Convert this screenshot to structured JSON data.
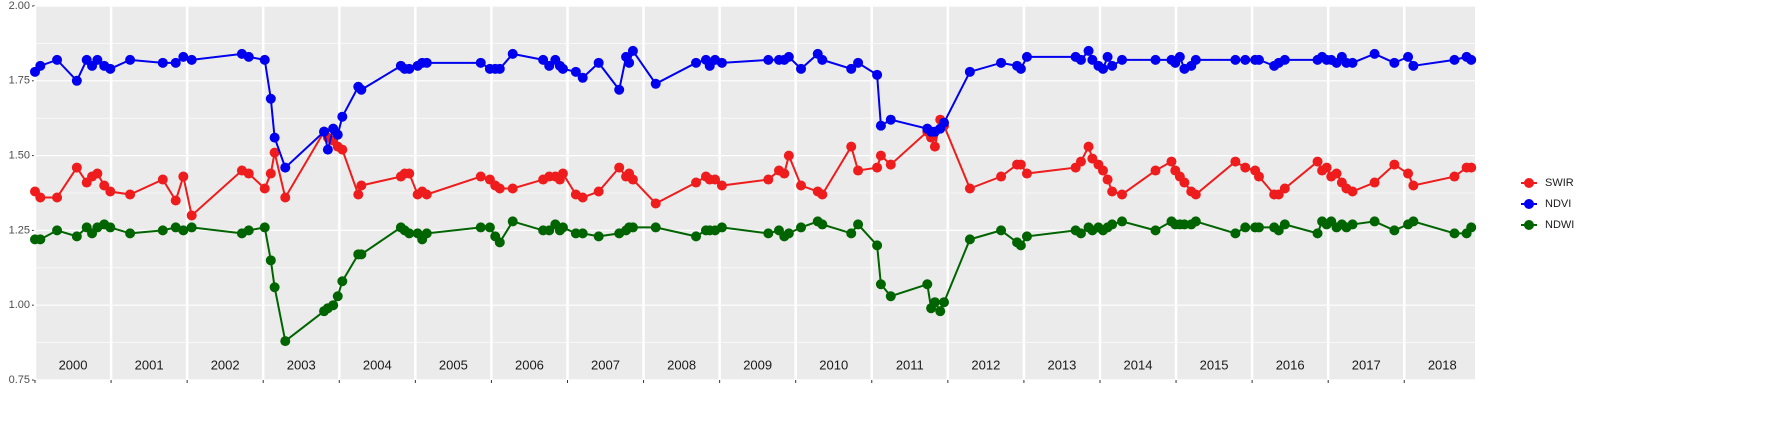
{
  "chart_data": {
    "type": "line",
    "legend": "right",
    "grid": true,
    "xlim": [
      2000,
      2018.93
    ],
    "xticks": [
      2000,
      2001,
      2002,
      2003,
      2004,
      2005,
      2006,
      2007,
      2008,
      2009,
      2010,
      2011,
      2012,
      2013,
      2014,
      2015,
      2016,
      2017,
      2018
    ],
    "ylim": [
      0.75,
      2
    ],
    "yticks": [
      0.75,
      {
        "value": 1,
        "label": "1.00"
      },
      1.25,
      {
        "value": 1.5,
        "label": "1.50"
      },
      1.75,
      {
        "value": 2,
        "label": "2.00"
      }
    ],
    "x": [
      2000,
      2000.07,
      2000.29,
      2000.55,
      2000.68,
      2000.75,
      2000.82,
      2000.91,
      2000.99,
      2001.25,
      2001.68,
      2001.85,
      2001.95,
      2002.06,
      2002.72,
      2002.81,
      2003.02,
      2003.1,
      2003.15,
      2003.29,
      2003.8,
      2003.85,
      2003.92,
      2003.98,
      2004.04,
      2004.25,
      2004.29,
      2004.81,
      2004.86,
      2004.92,
      2005.03,
      2005.09,
      2005.15,
      2005.86,
      2005.98,
      2006.05,
      2006.11,
      2006.28,
      2006.68,
      2006.76,
      2006.84,
      2006.9,
      2006.94,
      2007.11,
      2007.2,
      2007.41,
      2007.68,
      2007.77,
      2007.81,
      2007.86,
      2008.16,
      2008.69,
      2008.82,
      2008.87,
      2008.94,
      2009.03,
      2009.64,
      2009.78,
      2009.85,
      2009.91,
      2010.07,
      2010.29,
      2010.35,
      2010.73,
      2010.82,
      2011.07,
      2011.12,
      2011.25,
      2011.73,
      2011.78,
      2011.83,
      2011.9,
      2011.95,
      2012.29,
      2012.7,
      2012.91,
      2012.96,
      2013.04,
      2013.68,
      2013.75,
      2013.85,
      2013.9,
      2013.98,
      2014.04,
      2014.1,
      2014.16,
      2014.29,
      2014.73,
      2014.94,
      2014.99,
      2015.05,
      2015.11,
      2015.2,
      2015.26,
      2015.78,
      2015.91,
      2016.04,
      2016.09,
      2016.29,
      2016.35,
      2016.43,
      2016.86,
      2016.92,
      2016.98,
      2017.04,
      2017.11,
      2017.18,
      2017.24,
      2017.32,
      2017.61,
      2017.87,
      2018.05,
      2018.12,
      2018.66,
      2018.82,
      2018.88
    ],
    "series": [
      {
        "name": "SWIR",
        "color": "#ee1c1c",
        "values": [
          1.38,
          1.36,
          1.36,
          1.46,
          1.41,
          1.43,
          1.44,
          1.4,
          1.38,
          1.37,
          1.42,
          1.35,
          1.43,
          1.3,
          1.45,
          1.44,
          1.39,
          1.44,
          1.51,
          1.36,
          1.58,
          1.56,
          1.55,
          1.53,
          1.52,
          1.37,
          1.4,
          1.43,
          1.44,
          1.44,
          1.37,
          1.38,
          1.37,
          1.43,
          1.42,
          1.4,
          1.39,
          1.39,
          1.42,
          1.43,
          1.43,
          1.42,
          1.44,
          1.37,
          1.36,
          1.38,
          1.46,
          1.43,
          1.44,
          1.42,
          1.34,
          1.41,
          1.43,
          1.42,
          1.42,
          1.4,
          1.42,
          1.45,
          1.44,
          1.5,
          1.4,
          1.38,
          1.37,
          1.53,
          1.45,
          1.46,
          1.5,
          1.47,
          1.58,
          1.56,
          1.53,
          1.62,
          1.6,
          1.39,
          1.43,
          1.47,
          1.47,
          1.44,
          1.46,
          1.48,
          1.53,
          1.49,
          1.47,
          1.45,
          1.42,
          1.38,
          1.37,
          1.45,
          1.48,
          1.45,
          1.43,
          1.41,
          1.38,
          1.37,
          1.48,
          1.46,
          1.45,
          1.43,
          1.37,
          1.37,
          1.39,
          1.48,
          1.45,
          1.46,
          1.43,
          1.44,
          1.41,
          1.39,
          1.38,
          1.41,
          1.47,
          1.44,
          1.4,
          1.43,
          1.46,
          1.46
        ]
      },
      {
        "name": "NDVI",
        "color": "#0000ee",
        "values": [
          1.78,
          1.8,
          1.82,
          1.75,
          1.82,
          1.8,
          1.82,
          1.8,
          1.79,
          1.82,
          1.81,
          1.81,
          1.83,
          1.82,
          1.84,
          1.83,
          1.82,
          1.69,
          1.56,
          1.46,
          1.58,
          1.52,
          1.59,
          1.57,
          1.63,
          1.73,
          1.72,
          1.8,
          1.79,
          1.79,
          1.8,
          1.81,
          1.81,
          1.81,
          1.79,
          1.79,
          1.79,
          1.84,
          1.82,
          1.8,
          1.82,
          1.8,
          1.79,
          1.78,
          1.76,
          1.81,
          1.72,
          1.83,
          1.81,
          1.85,
          1.74,
          1.81,
          1.82,
          1.8,
          1.82,
          1.81,
          1.82,
          1.82,
          1.82,
          1.83,
          1.79,
          1.84,
          1.82,
          1.79,
          1.81,
          1.77,
          1.6,
          1.62,
          1.59,
          1.58,
          1.58,
          1.59,
          1.61,
          1.78,
          1.81,
          1.8,
          1.79,
          1.83,
          1.83,
          1.82,
          1.85,
          1.82,
          1.8,
          1.79,
          1.83,
          1.8,
          1.82,
          1.82,
          1.82,
          1.81,
          1.83,
          1.79,
          1.8,
          1.82,
          1.82,
          1.82,
          1.82,
          1.82,
          1.8,
          1.81,
          1.82,
          1.82,
          1.83,
          1.82,
          1.82,
          1.81,
          1.83,
          1.81,
          1.81,
          1.84,
          1.81,
          1.83,
          1.8,
          1.82,
          1.83,
          1.82
        ]
      },
      {
        "name": "NDWI",
        "color": "#006400",
        "values": [
          1.22,
          1.22,
          1.25,
          1.23,
          1.26,
          1.24,
          1.26,
          1.27,
          1.26,
          1.24,
          1.25,
          1.26,
          1.25,
          1.26,
          1.24,
          1.25,
          1.26,
          1.15,
          1.06,
          0.88,
          0.98,
          0.99,
          1.0,
          1.03,
          1.08,
          1.17,
          1.17,
          1.26,
          1.25,
          1.24,
          1.24,
          1.22,
          1.24,
          1.26,
          1.26,
          1.23,
          1.21,
          1.28,
          1.25,
          1.25,
          1.27,
          1.25,
          1.26,
          1.24,
          1.24,
          1.23,
          1.24,
          1.25,
          1.26,
          1.26,
          1.26,
          1.23,
          1.25,
          1.25,
          1.25,
          1.26,
          1.24,
          1.25,
          1.23,
          1.24,
          1.26,
          1.28,
          1.27,
          1.24,
          1.27,
          1.2,
          1.07,
          1.03,
          1.07,
          0.99,
          1.01,
          0.98,
          1.01,
          1.22,
          1.25,
          1.21,
          1.2,
          1.23,
          1.25,
          1.24,
          1.26,
          1.25,
          1.26,
          1.25,
          1.26,
          1.27,
          1.28,
          1.25,
          1.28,
          1.27,
          1.27,
          1.27,
          1.27,
          1.28,
          1.24,
          1.26,
          1.26,
          1.26,
          1.26,
          1.25,
          1.27,
          1.24,
          1.28,
          1.27,
          1.28,
          1.26,
          1.27,
          1.26,
          1.27,
          1.28,
          1.25,
          1.27,
          1.28,
          1.24,
          1.24,
          1.26
        ]
      }
    ]
  }
}
